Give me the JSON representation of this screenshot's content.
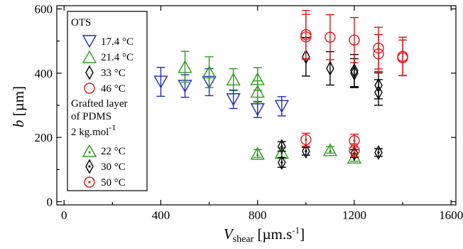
{
  "chart_data": {
    "type": "scatter",
    "xlabel": {
      "main": "V",
      "sub": "shear",
      "rest": " [µm.s",
      "sup": "-1",
      "end": "]"
    },
    "ylabel": {
      "main": "b",
      "rest": " [µm]"
    },
    "xlim": [
      -30,
      1620
    ],
    "ylim": [
      -10,
      610
    ],
    "xticks": [
      0,
      400,
      800,
      1200,
      1600
    ],
    "yticks": [
      0,
      200,
      400,
      600
    ],
    "xtick_labels": [
      "0",
      "400",
      "800",
      "1200",
      "1600"
    ],
    "ytick_labels": [
      "0",
      "200",
      "400",
      "600"
    ],
    "legend": {
      "position": "top-left",
      "group1_title": "OTS",
      "group2_title_line1": "Grafted layer",
      "group2_title_line2": "of PDMS",
      "group2_title_line3_main": "2 kg.mol",
      "group2_title_line3_sup": "-1"
    },
    "series": [
      {
        "name": "17.4 °C",
        "group": 1,
        "marker": "triangle-down",
        "color": "#1f2db5",
        "points": [
          [
            400,
            373,
            45
          ],
          [
            500,
            360,
            35
          ],
          [
            600,
            372,
            42
          ],
          [
            700,
            318,
            28
          ],
          [
            800,
            287,
            25
          ],
          [
            900,
            297,
            30
          ]
        ]
      },
      {
        "name": "21.4 °C",
        "group": 1,
        "marker": "triangle-up",
        "color": "#2e9a1e",
        "points": [
          [
            500,
            420,
            48
          ],
          [
            600,
            403,
            48
          ],
          [
            700,
            381,
            33
          ],
          [
            800,
            382,
            35
          ],
          [
            800,
            343,
            33
          ]
        ]
      },
      {
        "name": "33 °C",
        "group": 1,
        "marker": "diamond",
        "color": "#000000",
        "points": [
          [
            1000,
            451,
            60
          ],
          [
            1100,
            415,
            52
          ],
          [
            1200,
            408,
            50
          ],
          [
            1200,
            400,
            45
          ],
          [
            1300,
            362,
            42
          ],
          [
            1300,
            340,
            40
          ]
        ]
      },
      {
        "name": "46 °C",
        "group": 1,
        "marker": "circle",
        "color": "#e0161b",
        "points": [
          [
            1000,
            520,
            75
          ],
          [
            1000,
            513,
            70
          ],
          [
            1100,
            512,
            70
          ],
          [
            1200,
            503,
            70
          ],
          [
            1300,
            478,
            65
          ],
          [
            1300,
            460,
            60
          ],
          [
            1400,
            452,
            60
          ],
          [
            1400,
            448,
            55
          ]
        ]
      },
      {
        "name": "22 °C",
        "group": 2,
        "marker": "triangle-up-dot",
        "color": "#2e9a1e",
        "points": [
          [
            800,
            150,
            12
          ],
          [
            900,
            153,
            15
          ],
          [
            1100,
            161,
            10
          ],
          [
            1200,
            138,
            12
          ]
        ]
      },
      {
        "name": "30 °C",
        "group": 2,
        "marker": "diamond-dot",
        "color": "#000000",
        "points": [
          [
            900,
            172,
            15
          ],
          [
            900,
            122,
            15
          ],
          [
            1000,
            157,
            12
          ],
          [
            1200,
            150,
            12
          ],
          [
            1300,
            153,
            12
          ]
        ]
      },
      {
        "name": "50 °C",
        "group": 2,
        "marker": "circle-dot",
        "color": "#e0161b",
        "points": [
          [
            1000,
            193,
            20
          ],
          [
            1200,
            190,
            20
          ],
          [
            1200,
            160,
            20
          ]
        ]
      }
    ]
  }
}
